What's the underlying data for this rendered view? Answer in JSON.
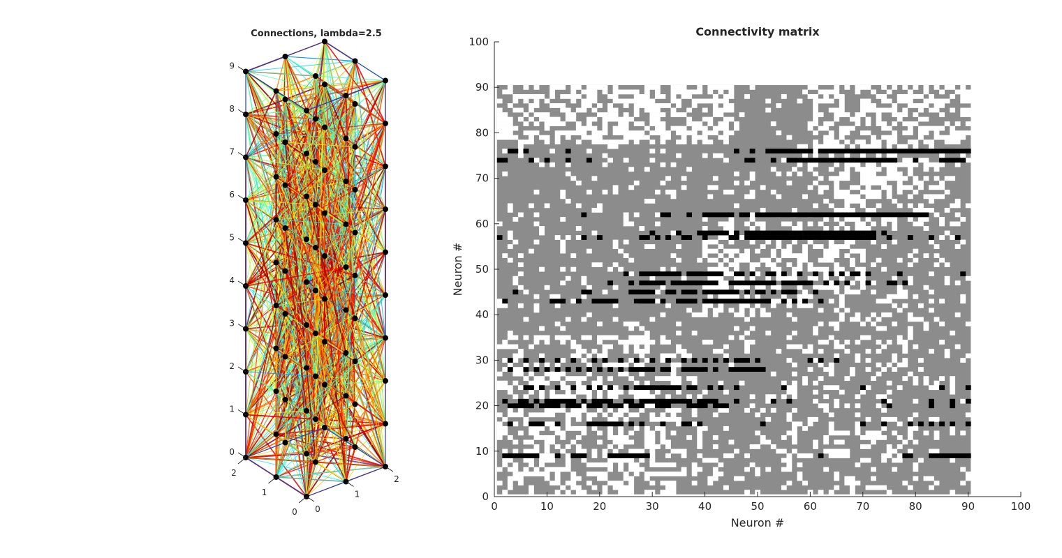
{
  "chart_data": [
    {
      "type": "network3d",
      "title": "Connections, lambda=2.5",
      "xlabel": "",
      "ylabel": "",
      "zlabel": "",
      "x_ticks": [
        "0",
        "1",
        "2"
      ],
      "y_ticks": [
        "0",
        "1",
        "2"
      ],
      "z_ticks": [
        "0",
        "1",
        "2",
        "3",
        "4",
        "5",
        "6",
        "7",
        "8",
        "9"
      ],
      "nodes": {
        "x": [
          0,
          1,
          2
        ],
        "y": [
          0,
          1,
          2
        ],
        "z": [
          0,
          1,
          2,
          3,
          4,
          5,
          6,
          7,
          8,
          9
        ],
        "count": 90
      },
      "edge_colormap": "jet",
      "grid": false
    },
    {
      "type": "heatmap",
      "title": "Connectivity matrix",
      "xlabel": "Neuron #",
      "ylabel": "Neuron #",
      "xlim": [
        0,
        100
      ],
      "ylim": [
        0,
        100
      ],
      "x_ticks": [
        "0",
        "10",
        "20",
        "30",
        "40",
        "50",
        "60",
        "70",
        "80",
        "90",
        "100"
      ],
      "y_ticks": [
        "0",
        "10",
        "20",
        "30",
        "40",
        "50",
        "60",
        "70",
        "80",
        "90",
        "100"
      ],
      "matrix_size": 90,
      "colors": {
        "no_connection": "#ffffff",
        "connection": "#8c8c8c",
        "strong_connection": "#000000"
      },
      "strong_rows": {
        "9": [
          2,
          3,
          4,
          5,
          6,
          7,
          8,
          12,
          15,
          16,
          17,
          22,
          23,
          24,
          25,
          26,
          27,
          28,
          29,
          62,
          78,
          79,
          83,
          84,
          85,
          86,
          87,
          88,
          89,
          90
        ],
        "16": [
          3,
          7,
          8,
          9,
          12,
          18,
          19,
          20,
          21,
          22,
          23,
          24,
          26,
          28,
          32,
          36,
          37,
          39,
          51,
          70,
          74,
          79,
          81,
          83,
          85,
          87,
          90
        ],
        "20": [
          3,
          4,
          5,
          6,
          7,
          9,
          10,
          11,
          12,
          14,
          15,
          16,
          18,
          19,
          20,
          22,
          23,
          24,
          26,
          27,
          28,
          31,
          32,
          33,
          37,
          38,
          39,
          40,
          42,
          43,
          44,
          75,
          83,
          87
        ],
        "21": [
          2,
          5,
          6,
          8,
          10,
          11,
          12,
          13,
          14,
          15,
          17,
          19,
          20,
          21,
          22,
          25,
          26,
          28,
          29,
          30,
          31,
          32,
          33,
          34,
          35,
          36,
          37,
          39,
          40,
          41,
          42,
          46,
          53,
          56,
          74,
          83,
          87,
          90
        ],
        "24": [
          6,
          7,
          9,
          12,
          15,
          18,
          20,
          22,
          25,
          27,
          28,
          29,
          30,
          31,
          32,
          33,
          34,
          35,
          37,
          38,
          41,
          43,
          46,
          55,
          70,
          85,
          90
        ],
        "28": [
          3,
          6,
          8,
          10,
          12,
          14,
          16,
          18,
          20,
          22,
          24,
          26,
          27,
          28,
          29,
          30,
          32,
          33,
          36,
          37,
          38,
          39,
          40,
          42,
          45,
          46,
          47,
          48,
          49,
          50,
          51
        ],
        "30": [
          3,
          6,
          9,
          12,
          15,
          19,
          21,
          24,
          27,
          30,
          33,
          36,
          38,
          40,
          42,
          44,
          46,
          47,
          48,
          50,
          60,
          62,
          65
        ],
        "43": [
          2,
          11,
          12,
          13,
          16,
          19,
          20,
          21,
          22,
          23,
          27,
          28,
          29,
          30,
          32,
          35,
          36,
          37,
          38,
          40,
          41,
          42,
          43,
          44,
          45,
          46,
          47,
          48,
          49,
          50,
          51,
          52,
          55,
          57,
          59,
          62
        ],
        "45": [
          4,
          17,
          18,
          26,
          27,
          28,
          29,
          30,
          33,
          34,
          36,
          37,
          38,
          40,
          41,
          42,
          43,
          44,
          45,
          46,
          48,
          50,
          51,
          53,
          55,
          56,
          57,
          61
        ],
        "47": [
          22,
          26,
          28,
          29,
          30,
          31,
          32,
          34,
          35,
          36,
          37,
          38,
          39,
          40,
          41,
          42,
          45,
          46,
          47,
          48,
          49,
          50,
          51,
          52,
          53,
          55,
          56,
          57,
          58,
          59,
          60,
          63,
          65,
          67,
          71,
          75,
          76,
          78
        ],
        "49": [
          25,
          28,
          29,
          30,
          31,
          32,
          33,
          34,
          35,
          37,
          38,
          39,
          40,
          41,
          42,
          43,
          46,
          47,
          49,
          52,
          53,
          55,
          58,
          61,
          64,
          66,
          68,
          69,
          71,
          77,
          89
        ],
        "57": [
          1,
          17,
          20,
          28,
          29,
          31,
          33,
          36,
          37,
          40,
          45,
          46,
          48,
          49,
          50,
          51,
          52,
          53,
          54,
          55,
          56,
          57,
          58,
          59,
          60,
          61,
          62,
          63,
          64,
          65,
          66,
          67,
          68,
          69,
          70,
          71,
          72,
          75,
          79,
          83,
          88
        ],
        "58": [
          30,
          35,
          39,
          40,
          41,
          42,
          43,
          44,
          46,
          48,
          49,
          50,
          51,
          52,
          53,
          54,
          55,
          56,
          57,
          58,
          59,
          60,
          61,
          62,
          63,
          64,
          65,
          66,
          67,
          68,
          69,
          70,
          71,
          72,
          74
        ],
        "62": [
          17,
          32,
          33,
          37,
          40,
          41,
          42,
          43,
          44,
          45,
          47,
          48,
          50,
          51,
          52,
          53,
          54,
          55,
          56,
          57,
          58,
          59,
          60,
          61,
          62,
          63,
          64,
          65,
          66,
          67,
          68,
          69,
          70,
          71,
          72,
          73,
          74,
          75,
          76,
          77,
          78,
          79,
          80,
          81,
          82
        ],
        "74": [
          1,
          2,
          7,
          10,
          14,
          18,
          48,
          49,
          53,
          56,
          57,
          58,
          59,
          60,
          61,
          62,
          63,
          64,
          65,
          66,
          67,
          68,
          69,
          70,
          71,
          72,
          73,
          74,
          75,
          76,
          80,
          85,
          86,
          87,
          88,
          89
        ],
        "76": [
          3,
          4,
          6,
          14,
          46,
          49,
          52,
          53,
          54,
          55,
          56,
          57,
          58,
          59,
          60,
          62,
          63,
          64,
          65,
          66,
          67,
          68,
          69,
          70,
          71,
          72,
          73,
          74,
          75,
          76,
          77,
          78,
          79,
          80,
          81,
          82,
          83,
          84,
          85,
          86,
          87,
          88,
          89,
          90
        ]
      }
    }
  ]
}
